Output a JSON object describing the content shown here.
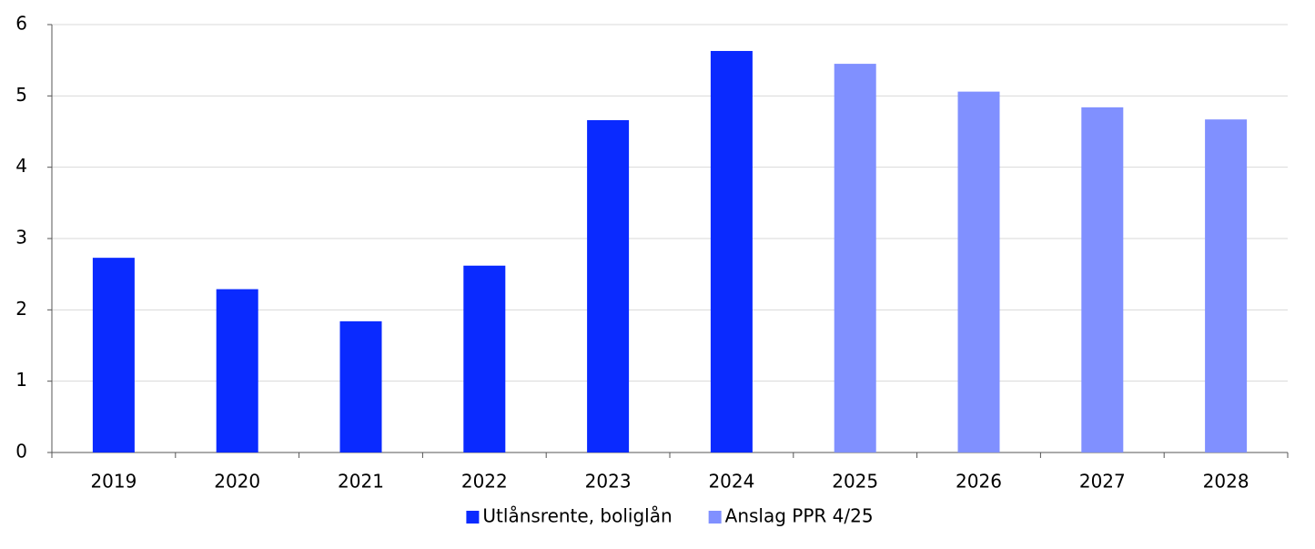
{
  "chart_data": {
    "type": "bar",
    "categories": [
      "2019",
      "2020",
      "2021",
      "2022",
      "2023",
      "2024",
      "2025",
      "2026",
      "2027",
      "2028"
    ],
    "series": [
      {
        "name": "Utlånsrente, boliglån",
        "color": "#0a2aff",
        "values": [
          2.73,
          2.29,
          1.84,
          2.62,
          4.66,
          5.63,
          null,
          null,
          null,
          null
        ]
      },
      {
        "name": "Anslag PPR 4/25",
        "color": "#8090ff",
        "values": [
          null,
          null,
          null,
          null,
          null,
          null,
          5.45,
          5.06,
          4.84,
          4.67
        ]
      }
    ],
    "ylim": [
      0,
      6
    ],
    "yticks": [
      0,
      1,
      2,
      3,
      4,
      5,
      6
    ],
    "grid": true,
    "legend": "bottom"
  }
}
